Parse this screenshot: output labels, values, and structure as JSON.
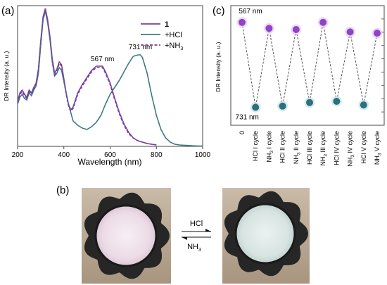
{
  "panels": {
    "a": {
      "label": "(a)"
    },
    "b": {
      "label": "(b)"
    },
    "c": {
      "label": "(c)"
    }
  },
  "colors": {
    "c1": "#7b3fa0",
    "hcl": "#3d7a84",
    "nh3": "#7b3fa0",
    "purple_marker": "#8e44c9",
    "teal_marker": "#2f6e7c",
    "dash": "#555555",
    "pink_lens": "#f3e9ef",
    "teal_lens": "#e6efee",
    "frame": "#2a2a2a",
    "bg_photo": "#b9a893"
  },
  "chart_data": [
    {
      "type": "line",
      "panel": "a",
      "xlabel": "Wavelength (nm)",
      "ylabel": "DR Intensity (a. u.)",
      "xlim": [
        200,
        1000
      ],
      "ylim": [
        0,
        1
      ],
      "xticks": [
        200,
        400,
        600,
        800,
        1000
      ],
      "legend_position": "top-right",
      "annotations": [
        {
          "text": "567 nm",
          "x": 567,
          "y": 0.585
        },
        {
          "text": "731 nm",
          "x": 731,
          "y": 0.67
        }
      ],
      "series": [
        {
          "name": "1",
          "style": "solid",
          "x": [
            200,
            210,
            220,
            230,
            240,
            250,
            260,
            270,
            280,
            290,
            300,
            310,
            320,
            330,
            340,
            350,
            360,
            370,
            380,
            390,
            400,
            410,
            420,
            430,
            440,
            450,
            460,
            480,
            500,
            520,
            540,
            560,
            567,
            580,
            600,
            620,
            640,
            660,
            680,
            700,
            720,
            740,
            760,
            780,
            800
          ],
          "y": [
            0.32,
            0.38,
            0.4,
            0.37,
            0.35,
            0.4,
            0.38,
            0.42,
            0.45,
            0.55,
            0.75,
            0.92,
            0.98,
            0.9,
            0.78,
            0.62,
            0.52,
            0.55,
            0.6,
            0.58,
            0.48,
            0.38,
            0.3,
            0.26,
            0.28,
            0.33,
            0.38,
            0.44,
            0.49,
            0.54,
            0.57,
            0.57,
            0.57,
            0.53,
            0.45,
            0.34,
            0.24,
            0.16,
            0.1,
            0.06,
            0.04,
            0.03,
            0.02,
            0.015,
            0.01
          ]
        },
        {
          "name": "+HCl",
          "style": "solid",
          "x": [
            200,
            210,
            220,
            230,
            240,
            250,
            260,
            270,
            280,
            290,
            300,
            310,
            320,
            330,
            340,
            350,
            360,
            370,
            380,
            390,
            400,
            420,
            440,
            460,
            480,
            500,
            520,
            540,
            560,
            580,
            600,
            620,
            640,
            660,
            680,
            700,
            720,
            731,
            740,
            760,
            780,
            800,
            820,
            840,
            860,
            880,
            900,
            920,
            940,
            960,
            980,
            1000
          ],
          "y": [
            0.3,
            0.35,
            0.37,
            0.34,
            0.33,
            0.38,
            0.36,
            0.4,
            0.43,
            0.52,
            0.72,
            0.9,
            0.96,
            0.88,
            0.76,
            0.6,
            0.5,
            0.52,
            0.56,
            0.54,
            0.46,
            0.3,
            0.18,
            0.15,
            0.13,
            0.12,
            0.14,
            0.17,
            0.22,
            0.3,
            0.37,
            0.42,
            0.47,
            0.53,
            0.59,
            0.64,
            0.65,
            0.65,
            0.63,
            0.52,
            0.36,
            0.22,
            0.12,
            0.06,
            0.03,
            0.015,
            0.01,
            0.008,
            0.006,
            0.004,
            0.003,
            0.002
          ]
        },
        {
          "name": "+NH3",
          "style": "dashed",
          "x": [
            200,
            210,
            220,
            230,
            240,
            250,
            260,
            270,
            280,
            290,
            300,
            310,
            320,
            330,
            340,
            350,
            360,
            370,
            380,
            390,
            400,
            410,
            420,
            430,
            440,
            450,
            460,
            480,
            500,
            520,
            540,
            560,
            567,
            580,
            600,
            620,
            640,
            660,
            680,
            700,
            720,
            740,
            760,
            780,
            800
          ],
          "y": [
            0.31,
            0.37,
            0.39,
            0.36,
            0.34,
            0.39,
            0.37,
            0.41,
            0.44,
            0.54,
            0.74,
            0.91,
            0.97,
            0.89,
            0.77,
            0.61,
            0.51,
            0.54,
            0.59,
            0.57,
            0.47,
            0.37,
            0.29,
            0.25,
            0.27,
            0.32,
            0.37,
            0.43,
            0.48,
            0.53,
            0.56,
            0.56,
            0.56,
            0.52,
            0.44,
            0.33,
            0.23,
            0.15,
            0.09,
            0.06,
            0.04,
            0.03,
            0.02,
            0.015,
            0.01
          ]
        }
      ]
    },
    {
      "type": "scatter",
      "panel": "c",
      "ylabel": "DR Intensity (a. u.)",
      "xlabel": "",
      "ylim": [
        0,
        1
      ],
      "categories": [
        "0",
        "HCl I cycle",
        "NH3 I cycle",
        "HCl II cycle",
        "NH3 II cycle",
        "HCl III cycle",
        "NH3 III cycle",
        "HCl IV cycle",
        "NH3 IV cycle",
        "HCl V cycle",
        "NH3 V cycle"
      ],
      "tick_labels": [
        {
          "pre": "0",
          "sub": "",
          "post": ""
        },
        {
          "pre": "HCl I cycle",
          "sub": "",
          "post": ""
        },
        {
          "pre": "NH",
          "sub": "3",
          "post": " I cycle"
        },
        {
          "pre": "HCl II cycle",
          "sub": "",
          "post": ""
        },
        {
          "pre": "NH",
          "sub": "3",
          "post": " II cycle"
        },
        {
          "pre": "HCl III cycle",
          "sub": "",
          "post": ""
        },
        {
          "pre": "NH",
          "sub": "3",
          "post": " III cycle"
        },
        {
          "pre": "HCl IV cycle",
          "sub": "",
          "post": ""
        },
        {
          "pre": "NH",
          "sub": "3",
          "post": " IV cycle"
        },
        {
          "pre": "HCl V cycle",
          "sub": "",
          "post": ""
        },
        {
          "pre": "NH",
          "sub": "3",
          "post": " V cycle"
        }
      ],
      "values": [
        0.86,
        0.15,
        0.81,
        0.16,
        0.8,
        0.19,
        0.86,
        0.2,
        0.78,
        0.17,
        0.77
      ],
      "point_types": [
        "567",
        "731",
        "567",
        "731",
        "567",
        "731",
        "567",
        "731",
        "567",
        "731",
        "567"
      ],
      "annotations": [
        {
          "text": "567 nm",
          "index": 0,
          "pos": "above"
        },
        {
          "text": "731 nm",
          "index": 1,
          "pos": "below"
        }
      ]
    }
  ],
  "legend": {
    "entries": [
      {
        "pre": "1",
        "sub": "",
        "post": "",
        "bold": true
      },
      {
        "pre": "+HCl",
        "sub": "",
        "post": "",
        "bold": false
      },
      {
        "pre": "+NH",
        "sub": "3",
        "post": "",
        "bold": false
      }
    ]
  },
  "photo": {
    "arrow_top_label": "HCl",
    "arrow_bottom_pre": "NH",
    "arrow_bottom_sub": "3"
  }
}
